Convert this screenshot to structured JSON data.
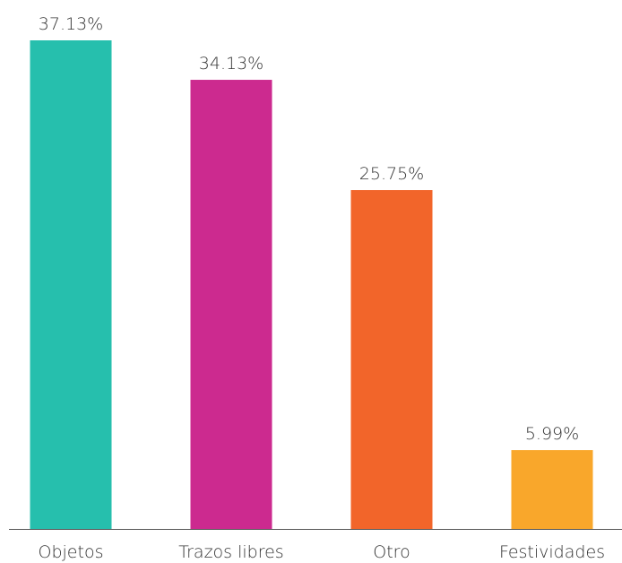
{
  "chart_data": {
    "type": "bar",
    "categories": [
      "Objetos",
      "Trazos libres",
      "Otro",
      "Festividades"
    ],
    "values": [
      37.13,
      34.13,
      25.75,
      5.99
    ],
    "value_labels": [
      "37.13%",
      "34.13%",
      "25.75%",
      "5.99%"
    ],
    "colors": [
      "#26bfad",
      "#cc2a8f",
      "#f2652a",
      "#f9a72b"
    ]
  }
}
